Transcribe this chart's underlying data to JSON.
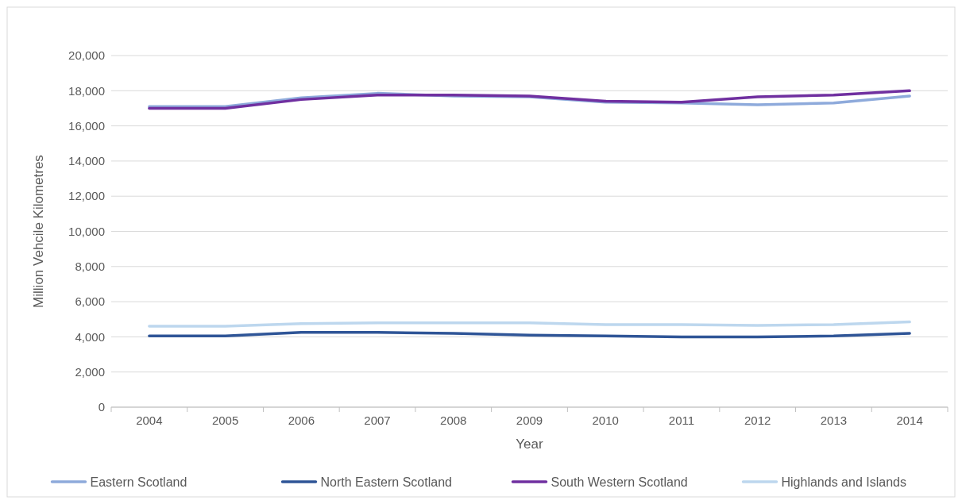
{
  "chart_data": {
    "type": "line",
    "xlabel": "Year",
    "ylabel": "Million Vehcile Kilometres",
    "categories": [
      "2004",
      "2005",
      "2006",
      "2007",
      "2008",
      "2009",
      "2010",
      "2011",
      "2012",
      "2013",
      "2014"
    ],
    "series": [
      {
        "name": "Eastern Scotland",
        "color": "#8eaadb",
        "values": [
          17100,
          17100,
          17600,
          17850,
          17700,
          17650,
          17350,
          17300,
          17200,
          17300,
          17700
        ]
      },
      {
        "name": "North Eastern Scotland",
        "color": "#2f5597",
        "values": [
          4050,
          4050,
          4250,
          4250,
          4200,
          4100,
          4050,
          4000,
          4000,
          4050,
          4200
        ]
      },
      {
        "name": "South Western Scotland",
        "color": "#7030a0",
        "values": [
          17000,
          17000,
          17500,
          17750,
          17750,
          17700,
          17400,
          17350,
          17650,
          17750,
          18000
        ]
      },
      {
        "name": "Highlands and Islands",
        "color": "#bdd7ee",
        "values": [
          4600,
          4600,
          4750,
          4800,
          4800,
          4800,
          4700,
          4700,
          4650,
          4700,
          4850
        ]
      }
    ],
    "ylim": [
      0,
      20000
    ],
    "yticks": [
      0,
      {
        "value": 2000,
        "label": "2,000"
      },
      {
        "value": 4000,
        "label": "4,000"
      },
      {
        "value": 6000,
        "label": "6,000"
      },
      {
        "value": 8000,
        "label": "8,000"
      },
      {
        "value": 10000,
        "label": "10,000"
      },
      {
        "value": 12000,
        "label": "12,000"
      },
      {
        "value": 14000,
        "label": "14,000"
      },
      {
        "value": 16000,
        "label": "16,000"
      },
      {
        "value": 18000,
        "label": "18,000"
      },
      {
        "value": 20000,
        "label": "20,000"
      }
    ],
    "grid": "y",
    "legend": "bottom",
    "marker": "none",
    "line_style": "solid"
  }
}
